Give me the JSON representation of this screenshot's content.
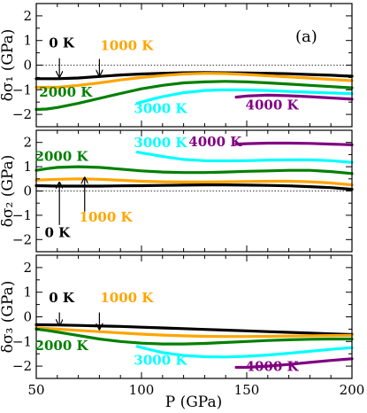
{
  "figure": {
    "panel_tag": "(a)",
    "xlabel": "P (GPa)"
  },
  "chart_data": [
    {
      "type": "line",
      "ylabel": "δσ1 (GPa)",
      "xlim": [
        50,
        200
      ],
      "ylim": [
        -2.5,
        2.5
      ],
      "xticks": [
        50,
        100,
        150,
        200
      ],
      "yticks": [
        -2,
        -1,
        0,
        1,
        2
      ],
      "zero_line": true,
      "series": [
        {
          "name": "0 K",
          "color": "#000000",
          "x": [
            50,
            60,
            70,
            80,
            90,
            100,
            110,
            120,
            130,
            140,
            150,
            160,
            170,
            180,
            190,
            200
          ],
          "y": [
            -0.55,
            -0.55,
            -0.52,
            -0.46,
            -0.4,
            -0.36,
            -0.33,
            -0.31,
            -0.3,
            -0.31,
            -0.32,
            -0.33,
            -0.35,
            -0.38,
            -0.41,
            -0.45
          ]
        },
        {
          "name": "1000 K",
          "color": "#ffa500",
          "x": [
            50,
            60,
            70,
            80,
            90,
            100,
            110,
            120,
            130,
            140,
            150,
            160,
            170,
            180,
            190,
            200
          ],
          "y": [
            -0.9,
            -0.9,
            -0.82,
            -0.72,
            -0.6,
            -0.5,
            -0.42,
            -0.36,
            -0.33,
            -0.34,
            -0.38,
            -0.43,
            -0.48,
            -0.53,
            -0.58,
            -0.63
          ]
        },
        {
          "name": "2000 K",
          "color": "#008000",
          "x": [
            50,
            55,
            60,
            70,
            80,
            90,
            100,
            110,
            120,
            130,
            140,
            150,
            160,
            170,
            180,
            190,
            200
          ],
          "y": [
            -1.8,
            -1.78,
            -1.72,
            -1.55,
            -1.35,
            -1.15,
            -0.96,
            -0.82,
            -0.72,
            -0.68,
            -0.66,
            -0.68,
            -0.72,
            -0.77,
            -0.82,
            -0.87,
            -0.92
          ]
        },
        {
          "name": "3000 K",
          "color": "#00ffff",
          "x": [
            98,
            105,
            110,
            120,
            130,
            140,
            150,
            160,
            170,
            180,
            190,
            200
          ],
          "y": [
            -1.55,
            -1.38,
            -1.28,
            -1.12,
            -1.03,
            -1.0,
            -1.01,
            -1.03,
            -1.07,
            -1.1,
            -1.13,
            -1.16
          ]
        },
        {
          "name": "4000 K",
          "color": "#800080",
          "x": [
            145,
            150,
            160,
            170,
            180,
            190,
            200
          ],
          "y": [
            -1.3,
            -1.25,
            -1.22,
            -1.24,
            -1.28,
            -1.33,
            -1.38
          ]
        }
      ],
      "series_labels": [
        {
          "text": "0 K",
          "color": "#000000",
          "x": 62,
          "y": 0.72
        },
        {
          "text": "1000 K",
          "color": "#ffa500",
          "x": 93,
          "y": 0.62
        },
        {
          "text": "2000 K",
          "color": "#008000",
          "x": 64,
          "y": -1.28
        },
        {
          "text": "3000 K",
          "color": "#00ffff",
          "x": 109,
          "y": -1.95
        },
        {
          "text": "4000 K",
          "color": "#800080",
          "x": 162,
          "y": -1.8
        }
      ],
      "arrows": [
        {
          "from": [
            61,
            0.28
          ],
          "to": [
            61,
            -0.48
          ],
          "color": "#000000"
        },
        {
          "from": [
            80,
            0.25
          ],
          "to": [
            80,
            -0.43
          ],
          "color": "#000000"
        }
      ]
    },
    {
      "type": "line",
      "ylabel": "δσ2 (GPa)",
      "xlim": [
        50,
        200
      ],
      "ylim": [
        -2.5,
        2.5
      ],
      "xticks": [
        50,
        100,
        150,
        200
      ],
      "yticks": [
        -2,
        -1,
        0,
        1,
        2
      ],
      "zero_line": true,
      "series": [
        {
          "name": "0 K",
          "color": "#000000",
          "x": [
            50,
            60,
            70,
            80,
            90,
            100,
            110,
            120,
            130,
            140,
            150,
            160,
            170,
            180,
            190,
            200
          ],
          "y": [
            0.22,
            0.2,
            0.2,
            0.2,
            0.21,
            0.22,
            0.23,
            0.24,
            0.25,
            0.25,
            0.24,
            0.23,
            0.21,
            0.18,
            0.14,
            0.07
          ]
        },
        {
          "name": "1000 K",
          "color": "#ffa500",
          "x": [
            50,
            60,
            70,
            80,
            90,
            100,
            110,
            120,
            130,
            140,
            150,
            160,
            170,
            180,
            190,
            200
          ],
          "y": [
            0.45,
            0.48,
            0.5,
            0.48,
            0.44,
            0.4,
            0.38,
            0.37,
            0.37,
            0.38,
            0.39,
            0.4,
            0.4,
            0.38,
            0.33,
            0.25
          ]
        },
        {
          "name": "2000 K",
          "color": "#008000",
          "x": [
            50,
            55,
            60,
            70,
            80,
            90,
            100,
            110,
            120,
            130,
            140,
            150,
            160,
            170,
            180,
            190,
            200
          ],
          "y": [
            0.85,
            0.92,
            0.97,
            1.0,
            0.97,
            0.9,
            0.83,
            0.78,
            0.76,
            0.76,
            0.78,
            0.81,
            0.83,
            0.85,
            0.85,
            0.8,
            0.72
          ]
        },
        {
          "name": "3000 K",
          "color": "#00ffff",
          "x": [
            98,
            105,
            110,
            120,
            130,
            140,
            150,
            160,
            170,
            180,
            190,
            200
          ],
          "y": [
            1.6,
            1.5,
            1.42,
            1.3,
            1.25,
            1.24,
            1.25,
            1.27,
            1.28,
            1.28,
            1.25,
            1.18
          ]
        },
        {
          "name": "4000 K",
          "color": "#800080",
          "x": [
            145,
            150,
            160,
            170,
            180,
            190,
            200
          ],
          "y": [
            1.93,
            1.95,
            1.97,
            1.97,
            1.96,
            1.93,
            1.9
          ]
        }
      ],
      "series_labels": [
        {
          "text": "2000 K",
          "color": "#008000",
          "x": 62,
          "y": 1.25
        },
        {
          "text": "3000 K",
          "color": "#00ffff",
          "x": 109,
          "y": 1.8
        },
        {
          "text": "4000 K",
          "color": "#800080",
          "x": 135,
          "y": 1.85
        },
        {
          "text": "1000 K",
          "color": "#ffa500",
          "x": 83,
          "y": -1.25
        },
        {
          "text": "0 K",
          "color": "#000000",
          "x": 60,
          "y": -1.9
        }
      ],
      "arrows": [
        {
          "from": [
            61,
            -1.4
          ],
          "to": [
            61,
            0.35
          ],
          "color": "#000000"
        },
        {
          "from": [
            73,
            -0.85
          ],
          "to": [
            73,
            0.55
          ],
          "color": "#000000"
        }
      ]
    },
    {
      "type": "line",
      "ylabel": "δσ3 (GPa)",
      "xlim": [
        50,
        200
      ],
      "ylim": [
        -2.5,
        2.5
      ],
      "xticks": [
        50,
        100,
        150,
        200
      ],
      "yticks": [
        -2,
        -1,
        0,
        1,
        2
      ],
      "zero_line": false,
      "series": [
        {
          "name": "0 K",
          "color": "#000000",
          "x": [
            50,
            60,
            70,
            80,
            90,
            100,
            110,
            120,
            130,
            140,
            150,
            160,
            170,
            180,
            190,
            200
          ],
          "y": [
            -0.32,
            -0.33,
            -0.35,
            -0.37,
            -0.39,
            -0.42,
            -0.45,
            -0.48,
            -0.51,
            -0.54,
            -0.57,
            -0.6,
            -0.63,
            -0.66,
            -0.69,
            -0.72
          ]
        },
        {
          "name": "1000 K",
          "color": "#ffa500",
          "x": [
            50,
            60,
            70,
            80,
            90,
            100,
            110,
            120,
            130,
            140,
            150,
            160,
            170,
            180,
            190,
            200
          ],
          "y": [
            -0.45,
            -0.5,
            -0.55,
            -0.6,
            -0.65,
            -0.7,
            -0.74,
            -0.77,
            -0.79,
            -0.8,
            -0.8,
            -0.79,
            -0.78,
            -0.77,
            -0.76,
            -0.75
          ]
        },
        {
          "name": "2000 K",
          "color": "#008000",
          "x": [
            50,
            55,
            60,
            70,
            80,
            90,
            100,
            110,
            120,
            130,
            140,
            150,
            160,
            170,
            180,
            190,
            200
          ],
          "y": [
            -0.5,
            -0.55,
            -0.62,
            -0.76,
            -0.9,
            -1.0,
            -1.07,
            -1.1,
            -1.1,
            -1.08,
            -1.04,
            -1.0,
            -0.96,
            -0.93,
            -0.91,
            -0.9,
            -0.9
          ]
        },
        {
          "name": "3000 K",
          "color": "#00ffff",
          "x": [
            98,
            105,
            110,
            120,
            130,
            140,
            150,
            160,
            170,
            180,
            190,
            200
          ],
          "y": [
            -1.2,
            -1.35,
            -1.45,
            -1.57,
            -1.62,
            -1.63,
            -1.6,
            -1.55,
            -1.48,
            -1.4,
            -1.32,
            -1.25
          ]
        },
        {
          "name": "4000 K",
          "color": "#800080",
          "x": [
            145,
            150,
            160,
            170,
            180,
            190,
            200
          ],
          "y": [
            -2.05,
            -2.05,
            -2.0,
            -1.93,
            -1.85,
            -1.77,
            -1.7
          ]
        }
      ],
      "series_labels": [
        {
          "text": "0 K",
          "color": "#000000",
          "x": 62,
          "y": 0.6
        },
        {
          "text": "1000 K",
          "color": "#ffa500",
          "x": 93,
          "y": 0.6
        },
        {
          "text": "2000 K",
          "color": "#008000",
          "x": 62,
          "y": -1.35
        },
        {
          "text": "3000 K",
          "color": "#00ffff",
          "x": 109,
          "y": -1.95
        },
        {
          "text": "4000 K",
          "color": "#800080",
          "x": 162,
          "y": -2.2
        }
      ],
      "arrows": [
        {
          "from": [
            61,
            0.18
          ],
          "to": [
            61,
            -0.35
          ],
          "color": "#000000"
        },
        {
          "from": [
            80,
            0.18
          ],
          "to": [
            80,
            -0.5
          ],
          "color": "#000000"
        }
      ]
    }
  ]
}
